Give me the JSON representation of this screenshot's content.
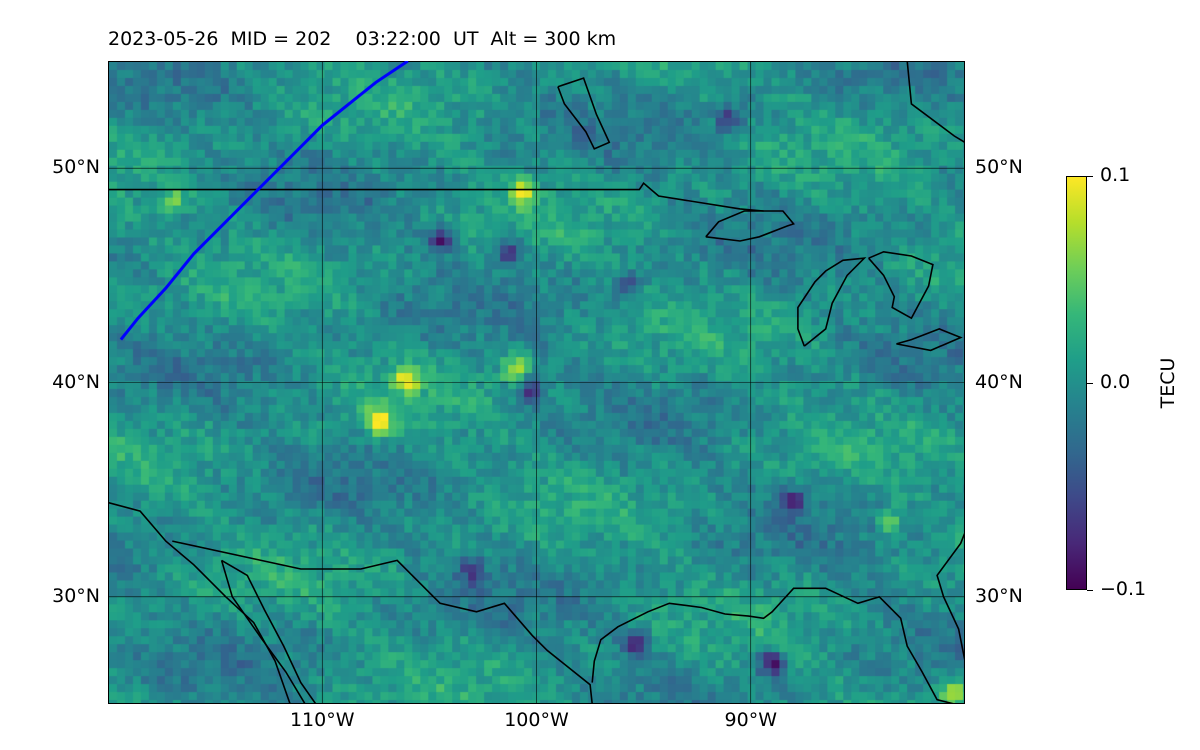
{
  "title": "2023-05-26  MID = 202    03:22:00  UT  Alt = 300 km",
  "map": {
    "extent_lon": [
      -120,
      -80
    ],
    "extent_lat": [
      25,
      55
    ],
    "lat_ticks": [
      {
        "value": 30,
        "label": "30°N"
      },
      {
        "value": 40,
        "label": "40°N"
      },
      {
        "value": 50,
        "label": "50°N"
      }
    ],
    "lon_ticks": [
      {
        "value": -110,
        "label": "110°W"
      },
      {
        "value": -100,
        "label": "100°W"
      },
      {
        "value": -90,
        "label": "90°W"
      }
    ],
    "track_color": "#0000ff",
    "coast_color": "#000000",
    "track": [
      [
        -119.4,
        42.0
      ],
      [
        -118.6,
        43.0
      ],
      [
        -117.3,
        44.4
      ],
      [
        -116.0,
        46.0
      ],
      [
        -114.5,
        47.5
      ],
      [
        -112.5,
        49.5
      ],
      [
        -110.0,
        52.0
      ],
      [
        -107.5,
        54.0
      ],
      [
        -106.0,
        55.0
      ]
    ],
    "boundaries": [
      [
        [
          -120,
          49.0
        ],
        [
          -95.2,
          49.0
        ],
        [
          -95.0,
          49.3
        ],
        [
          -94.3,
          48.7
        ],
        [
          -90.5,
          48.1
        ],
        [
          -89.4,
          48.0
        ]
      ],
      [
        [
          -120,
          34.4
        ],
        [
          -118.5,
          34.0
        ],
        [
          -117.3,
          32.6
        ],
        [
          -116.0,
          31.5
        ],
        [
          -114.5,
          30.0
        ],
        [
          -113.2,
          28.8
        ],
        [
          -112.2,
          27.0
        ],
        [
          -111.5,
          25.0
        ]
      ],
      [
        [
          -117.0,
          32.6
        ],
        [
          -111.0,
          31.3
        ],
        [
          -108.2,
          31.3
        ],
        [
          -106.5,
          31.7
        ],
        [
          -104.5,
          29.7
        ],
        [
          -102.8,
          29.3
        ],
        [
          -101.5,
          29.7
        ],
        [
          -100.2,
          28.2
        ],
        [
          -99.5,
          27.5
        ],
        [
          -97.5,
          25.9
        ],
        [
          -97.4,
          25.0
        ]
      ],
      [
        [
          -114.7,
          31.7
        ],
        [
          -114.2,
          30.0
        ],
        [
          -112.8,
          28.0
        ],
        [
          -111.7,
          26.5
        ],
        [
          -110.8,
          25.0
        ]
      ],
      [
        [
          -114.7,
          31.7
        ],
        [
          -113.5,
          31.0
        ],
        [
          -112.7,
          29.4
        ],
        [
          -111.8,
          27.7
        ],
        [
          -111.0,
          26.0
        ],
        [
          -110.3,
          25.0
        ]
      ],
      [
        [
          -97.4,
          26.0
        ],
        [
          -97.3,
          27.0
        ],
        [
          -97.0,
          28.0
        ],
        [
          -96.2,
          28.6
        ],
        [
          -94.8,
          29.3
        ],
        [
          -93.8,
          29.7
        ],
        [
          -92.3,
          29.5
        ],
        [
          -91.2,
          29.2
        ],
        [
          -90.1,
          29.1
        ],
        [
          -89.4,
          29.0
        ],
        [
          -89.0,
          29.3
        ],
        [
          -88.0,
          30.4
        ],
        [
          -86.5,
          30.4
        ],
        [
          -85.0,
          29.7
        ],
        [
          -84.0,
          30.0
        ],
        [
          -83.0,
          29.0
        ],
        [
          -82.7,
          27.7
        ],
        [
          -82.0,
          26.5
        ],
        [
          -81.3,
          25.2
        ],
        [
          -80.5,
          25.0
        ]
      ],
      [
        [
          -80.0,
          27.0
        ],
        [
          -80.3,
          28.5
        ],
        [
          -81.0,
          30.0
        ],
        [
          -81.3,
          31.0
        ],
        [
          -80.2,
          32.5
        ],
        [
          -80.0,
          33.0
        ]
      ],
      [
        [
          -92.1,
          46.8
        ],
        [
          -90.5,
          46.6
        ],
        [
          -89.6,
          46.8
        ],
        [
          -88.3,
          47.3
        ],
        [
          -88.0,
          47.4
        ],
        [
          -88.5,
          48.0
        ],
        [
          -89.4,
          48.0
        ],
        [
          -90.3,
          48.0
        ],
        [
          -91.5,
          47.5
        ],
        [
          -92.1,
          46.8
        ]
      ],
      [
        [
          -87.5,
          41.7
        ],
        [
          -87.8,
          42.5
        ],
        [
          -87.8,
          43.5
        ],
        [
          -87.0,
          44.7
        ],
        [
          -86.5,
          45.2
        ],
        [
          -85.7,
          45.7
        ],
        [
          -84.7,
          45.8
        ],
        [
          -85.5,
          45.0
        ],
        [
          -86.2,
          43.7
        ],
        [
          -86.5,
          42.5
        ],
        [
          -87.5,
          41.7
        ]
      ],
      [
        [
          -84.5,
          45.8
        ],
        [
          -83.8,
          46.1
        ],
        [
          -82.5,
          45.9
        ],
        [
          -81.5,
          45.5
        ],
        [
          -81.7,
          44.5
        ],
        [
          -82.5,
          43.0
        ],
        [
          -83.4,
          43.5
        ],
        [
          -83.3,
          44.0
        ],
        [
          -83.8,
          45.0
        ],
        [
          -84.5,
          45.8
        ]
      ],
      [
        [
          -83.2,
          41.8
        ],
        [
          -81.6,
          41.5
        ],
        [
          -80.2,
          42.1
        ],
        [
          -81.2,
          42.5
        ],
        [
          -82.5,
          42.0
        ],
        [
          -83.2,
          41.8
        ]
      ],
      [
        [
          -99.0,
          53.8
        ],
        [
          -97.8,
          54.2
        ],
        [
          -97.2,
          52.5
        ],
        [
          -96.6,
          51.2
        ],
        [
          -97.3,
          50.9
        ],
        [
          -97.7,
          51.7
        ],
        [
          -98.7,
          53.0
        ],
        [
          -99.0,
          53.8
        ]
      ],
      [
        [
          -82.7,
          55.0
        ],
        [
          -82.5,
          53.0
        ],
        [
          -80.5,
          51.5
        ],
        [
          -80.0,
          51.2
        ]
      ]
    ],
    "tec_anomalies": [
      {
        "lon": -107.4,
        "lat": 38.2,
        "value": 0.1
      },
      {
        "lon": -106.1,
        "lat": 40.1,
        "value": 0.09
      },
      {
        "lon": -101.0,
        "lat": 40.6,
        "value": 0.07
      },
      {
        "lon": -100.6,
        "lat": 48.9,
        "value": 0.08
      },
      {
        "lon": -83.5,
        "lat": 33.5,
        "value": 0.06
      },
      {
        "lon": -80.5,
        "lat": 25.5,
        "value": 0.08
      },
      {
        "lon": -117.0,
        "lat": 48.5,
        "value": 0.05
      },
      {
        "lon": -104.5,
        "lat": 46.7,
        "value": -0.08
      },
      {
        "lon": -101.3,
        "lat": 46.1,
        "value": -0.08
      },
      {
        "lon": -100.3,
        "lat": 39.6,
        "value": -0.08
      },
      {
        "lon": -95.4,
        "lat": 27.8,
        "value": -0.09
      },
      {
        "lon": -89.0,
        "lat": 26.9,
        "value": -0.09
      },
      {
        "lon": -91.0,
        "lat": 52.3,
        "value": -0.07
      },
      {
        "lon": -88.0,
        "lat": 34.5,
        "value": -0.07
      },
      {
        "lon": -103.0,
        "lat": 31.2,
        "value": -0.06
      },
      {
        "lon": -95.8,
        "lat": 44.5,
        "value": -0.06
      }
    ]
  },
  "colorbar": {
    "label": "TECU",
    "min": -0.1,
    "max": 0.1,
    "ticks": [
      {
        "value": 0.1,
        "label": "0.1"
      },
      {
        "value": 0.0,
        "label": "0.0"
      },
      {
        "value": -0.1,
        "label": "−0.1"
      }
    ]
  }
}
